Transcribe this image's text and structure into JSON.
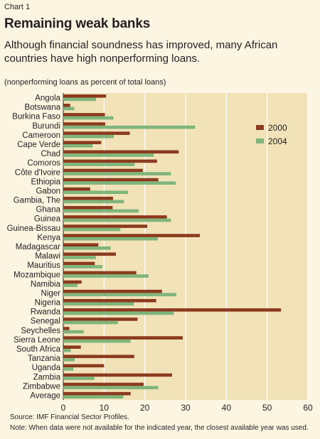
{
  "header": {
    "chart_label": "Chart 1",
    "title": "Remaining weak banks",
    "subtitle": "Although financial soundness has improved, many African countries have high nonperforming loans.",
    "units": "(nonperforming loans as percent of total loans)"
  },
  "footer": {
    "source": "Source: IMF Financial Sector Profiles.",
    "note": "Note: When data were not available for the indicated year, the closest available year was used."
  },
  "colors": {
    "plot_background": "#f1e2b8",
    "gridline": "#ffffff",
    "series_2000": "#8b3a1f",
    "series_2004": "#7fb57a"
  },
  "chart_data": {
    "type": "bar",
    "orientation": "horizontal",
    "categories": [
      "Angola",
      "Botswana",
      "Burkina Faso",
      "Burundi",
      "Cameroon",
      "Cape Verde",
      "Chad",
      "Comoros",
      "Côte d'Ivoire",
      "Ethiopia",
      "Gabon",
      "Gambia, The",
      "Ghana",
      "Guinea",
      "Guinea-Bissau",
      "Kenya",
      "Madagascar",
      "Malawi",
      "Mauritius",
      "Mozambique",
      "Namibia",
      "Niger",
      "Nigeria",
      "Rwanda",
      "Senegal",
      "Seychelles",
      "Sierra Leone",
      "South Africa",
      "Tanzania",
      "Uganda",
      "Zambia",
      "Zimbabwe",
      "Average"
    ],
    "series": [
      {
        "name": "2000",
        "values": [
          10.5,
          1.7,
          10.2,
          10.3,
          16.3,
          9.3,
          28.3,
          23,
          19.5,
          23.3,
          6.6,
          12.2,
          12.1,
          25.4,
          20.6,
          33.5,
          8.6,
          12.9,
          7.7,
          17.9,
          4.5,
          24.2,
          22.8,
          53.4,
          18.2,
          1.5,
          29.3,
          4.3,
          17.4,
          10.0,
          26.7,
          19.7,
          16.5
        ]
      },
      {
        "name": "2004",
        "values": [
          8.0,
          2.7,
          12.3,
          32.3,
          12.4,
          7.2,
          22.2,
          17.5,
          26.4,
          27.6,
          15.9,
          14.9,
          18.5,
          26.4,
          14.0,
          23.2,
          11.6,
          8.0,
          9.6,
          20.9,
          3.5,
          27.7,
          17.3,
          27.1,
          13.4,
          5.0,
          16.5,
          1.8,
          2.8,
          2.5,
          7.6,
          23.3,
          14.7
        ]
      }
    ],
    "xlim": [
      0,
      60
    ],
    "xticks": [
      "0",
      "10",
      "20",
      "30",
      "40",
      "50",
      "60"
    ],
    "grid": "vertical",
    "legend": {
      "position": "top-right",
      "entries": [
        "2000",
        "2004"
      ]
    }
  }
}
